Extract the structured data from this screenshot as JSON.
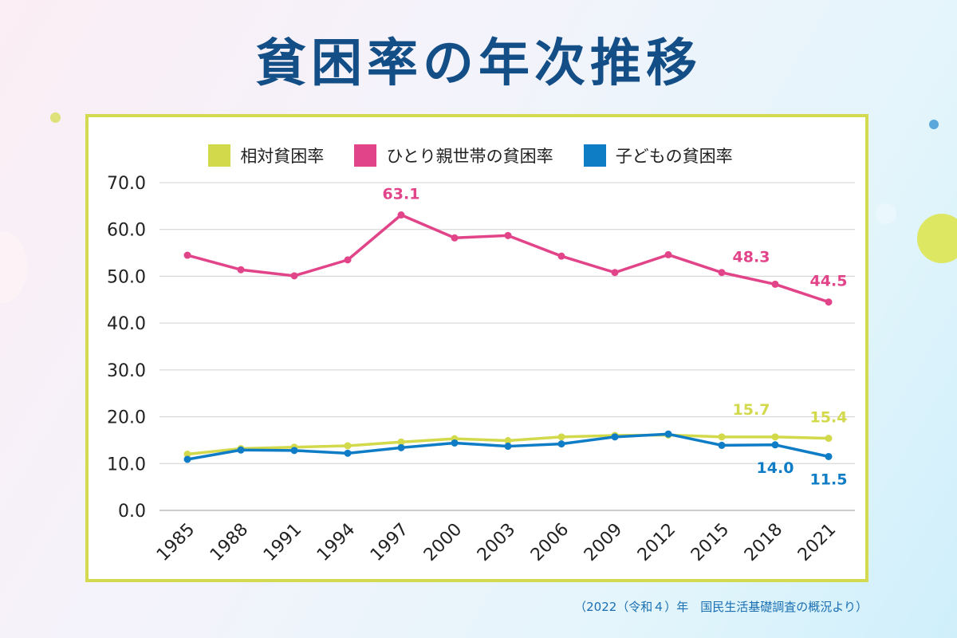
{
  "title": "貧困率の年次推移",
  "source_note": "（2022（令和４）年　国民生活基礎調査の概況より）",
  "colors": {
    "relative": "#d2d94b",
    "single_parent": "#e2448a",
    "child": "#0f7cc6",
    "frame": "#d4da4f",
    "title": "#134e86"
  },
  "chart_data": {
    "type": "line",
    "x": [
      "1985",
      "1988",
      "1991",
      "1994",
      "1997",
      "2000",
      "2003",
      "2006",
      "2009",
      "2012",
      "2015",
      "2018",
      "2021"
    ],
    "ylim": [
      0,
      70
    ],
    "yticks": [
      "0.0",
      "10.0",
      "20.0",
      "30.0",
      "40.0",
      "50.0",
      "60.0",
      "70.0"
    ],
    "grid": true,
    "legend_position": "top",
    "series": [
      {
        "name": "相対貧困率",
        "key": "relative",
        "values": [
          12.0,
          13.2,
          13.5,
          13.8,
          14.6,
          15.3,
          14.9,
          15.7,
          16.0,
          16.1,
          15.7,
          15.7,
          15.4
        ],
        "labels": [
          {
            "index": 11,
            "text": "15.7"
          },
          {
            "index": 12,
            "text": "15.4"
          }
        ]
      },
      {
        "name": "ひとり親世帯の貧困率",
        "key": "single_parent",
        "values": [
          54.5,
          51.4,
          50.1,
          53.5,
          63.1,
          58.2,
          58.7,
          54.3,
          50.8,
          54.6,
          50.8,
          48.3,
          44.5
        ],
        "labels": [
          {
            "index": 4,
            "text": "63.1"
          },
          {
            "index": 11,
            "text": "48.3"
          },
          {
            "index": 12,
            "text": "44.5"
          }
        ]
      },
      {
        "name": "子どもの貧困率",
        "key": "child",
        "values": [
          10.9,
          12.9,
          12.8,
          12.2,
          13.4,
          14.4,
          13.7,
          14.2,
          15.7,
          16.3,
          13.9,
          14.0,
          11.5
        ],
        "labels": [
          {
            "index": 11,
            "text": "14.0"
          },
          {
            "index": 12,
            "text": "11.5"
          }
        ]
      }
    ]
  }
}
